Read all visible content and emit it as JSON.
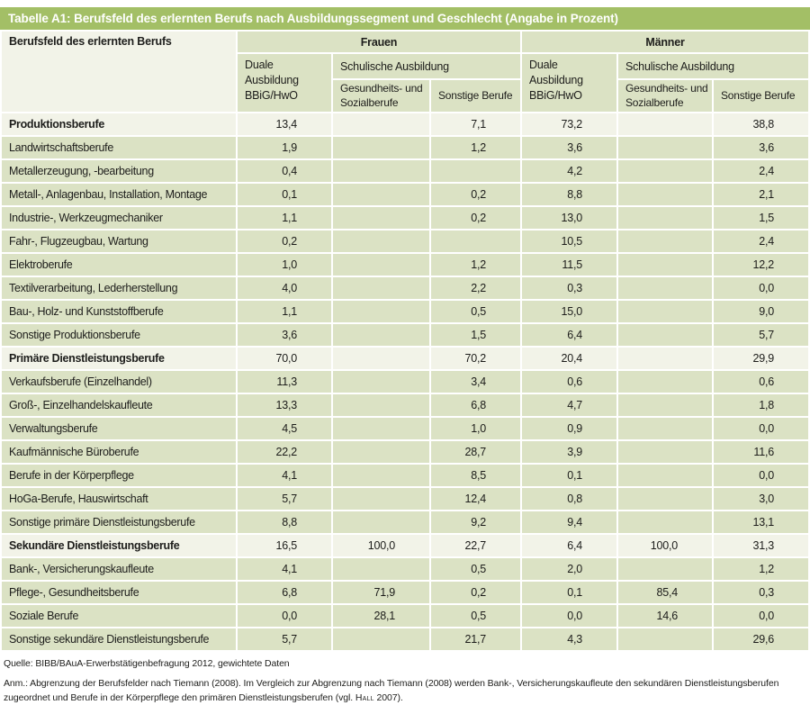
{
  "title": "Tabelle A1: Berufsfeld des erlernten Berufs nach Ausbildungssegment und Geschlecht (Angabe in Prozent)",
  "colors": {
    "title_bar_green": "#a3bf66",
    "cell_green": "#dbe2c4",
    "highlight_cream": "#f2f3e8",
    "gridline_white": "#ffffff",
    "text": "#1d1d1b"
  },
  "header": {
    "berufsfeld": "Berufsfeld des erlernten Berufs",
    "frauen": "Frauen",
    "maenner": "Männer",
    "duale": "Duale Ausbildung BBiG/HwO",
    "schulische": "Schulische Ausbildung",
    "gesundheit": "Gesundheits- und Sozialberufe",
    "sonstige": "Sonstige Berufe"
  },
  "chart_data": {
    "type": "table",
    "title": "Tabelle A1: Berufsfeld des erlernten Berufs nach Ausbildungssegment und Geschlecht (Angabe in Prozent)",
    "columns": [
      "Berufsfeld des erlernten Berufs",
      "Frauen – Duale Ausbildung BBiG/HwO",
      "Frauen – Schulische Ausbildung: Gesundheits- und Sozialberufe",
      "Frauen – Schulische Ausbildung: Sonstige Berufe",
      "Männer – Duale Ausbildung BBiG/HwO",
      "Männer – Schulische Ausbildung: Gesundheits- und Sozialberufe",
      "Männer – Schulische Ausbildung: Sonstige Berufe"
    ],
    "rows": [
      {
        "label": "Produktionsberufe",
        "bold": true,
        "values": [
          "13,4",
          "",
          "7,1",
          "73,2",
          "",
          "38,8"
        ]
      },
      {
        "label": "Landwirtschaftsberufe",
        "bold": false,
        "values": [
          "1,9",
          "",
          "1,2",
          "3,6",
          "",
          "3,6"
        ]
      },
      {
        "label": "Metallerzeugung, -bearbeitung",
        "bold": false,
        "values": [
          "0,4",
          "",
          "",
          "4,2",
          "",
          "2,4"
        ]
      },
      {
        "label": "Metall-, Anlagenbau, Installation, Montage",
        "bold": false,
        "values": [
          "0,1",
          "",
          "0,2",
          "8,8",
          "",
          "2,1"
        ]
      },
      {
        "label": "Industrie-, Werkzeugmechaniker",
        "bold": false,
        "values": [
          "1,1",
          "",
          "0,2",
          "13,0",
          "",
          "1,5"
        ]
      },
      {
        "label": "Fahr-, Flugzeugbau, Wartung",
        "bold": false,
        "values": [
          "0,2",
          "",
          "",
          "10,5",
          "",
          "2,4"
        ]
      },
      {
        "label": "Elektroberufe",
        "bold": false,
        "values": [
          "1,0",
          "",
          "1,2",
          "11,5",
          "",
          "12,2"
        ]
      },
      {
        "label": "Textilverarbeitung, Lederherstellung",
        "bold": false,
        "values": [
          "4,0",
          "",
          "2,2",
          "0,3",
          "",
          "0,0"
        ]
      },
      {
        "label": "Bau-, Holz- und Kunststoffberufe",
        "bold": false,
        "values": [
          "1,1",
          "",
          "0,5",
          "15,0",
          "",
          "9,0"
        ]
      },
      {
        "label": "Sonstige Produktionsberufe",
        "bold": false,
        "values": [
          "3,6",
          "",
          "1,5",
          "6,4",
          "",
          "5,7"
        ]
      },
      {
        "label": "Primäre Dienstleistungsberufe",
        "bold": true,
        "values": [
          "70,0",
          "",
          "70,2",
          "20,4",
          "",
          "29,9"
        ]
      },
      {
        "label": "Verkaufsberufe (Einzelhandel)",
        "bold": false,
        "values": [
          "11,3",
          "",
          "3,4",
          "0,6",
          "",
          "0,6"
        ]
      },
      {
        "label": "Groß-, Einzelhandelskaufleute",
        "bold": false,
        "values": [
          "13,3",
          "",
          "6,8",
          "4,7",
          "",
          "1,8"
        ]
      },
      {
        "label": "Verwaltungsberufe",
        "bold": false,
        "values": [
          "4,5",
          "",
          "1,0",
          "0,9",
          "",
          "0,0"
        ]
      },
      {
        "label": "Kaufmännische Büroberufe",
        "bold": false,
        "values": [
          "22,2",
          "",
          "28,7",
          "3,9",
          "",
          "11,6"
        ]
      },
      {
        "label": "Berufe in der Körperpflege",
        "bold": false,
        "values": [
          "4,1",
          "",
          "8,5",
          "0,1",
          "",
          "0,0"
        ]
      },
      {
        "label": "HoGa-Berufe, Hauswirtschaft",
        "bold": false,
        "values": [
          "5,7",
          "",
          "12,4",
          "0,8",
          "",
          "3,0"
        ]
      },
      {
        "label": "Sonstige primäre Dienstleistungsberufe",
        "bold": false,
        "values": [
          "8,8",
          "",
          "9,2",
          "9,4",
          "",
          "13,1"
        ]
      },
      {
        "label": "Sekundäre Dienstleistungsberufe",
        "bold": true,
        "values": [
          "16,5",
          "100,0",
          "22,7",
          "6,4",
          "100,0",
          "31,3"
        ]
      },
      {
        "label": "Bank-, Versicherungskaufleute",
        "bold": false,
        "values": [
          "4,1",
          "",
          "0,5",
          "2,0",
          "",
          "1,2"
        ]
      },
      {
        "label": "Pflege-, Gesundheitsberufe",
        "bold": false,
        "values": [
          "6,8",
          "71,9",
          "0,2",
          "0,1",
          "85,4",
          "0,3"
        ]
      },
      {
        "label": "Soziale Berufe",
        "bold": false,
        "values": [
          "0,0",
          "28,1",
          "0,5",
          "0,0",
          "14,6",
          "0,0"
        ]
      },
      {
        "label": "Sonstige sekundäre Dienstleistungsberufe",
        "bold": false,
        "values": [
          "5,7",
          "",
          "21,7",
          "4,3",
          "",
          "29,6"
        ]
      }
    ]
  },
  "footer": {
    "quelle": "Quelle: BIBB/BAuA-Erwerbstätigenbefragung 2012, gewichtete Daten",
    "anm_text": "Anm.: Abgrenzung der Berufsfelder nach Tiemann (2008). Im Vergleich zur Abgrenzung nach Tiemann (2008) werden Bank-, Versicherungskaufleute den sekundären Dienstleistungsberufen zugeordnet und Berufe in der Körperpflege den primären Dienstleistungsberufen (vgl. ",
    "anm_ref": "Hall",
    "anm_end": " 2007)."
  }
}
